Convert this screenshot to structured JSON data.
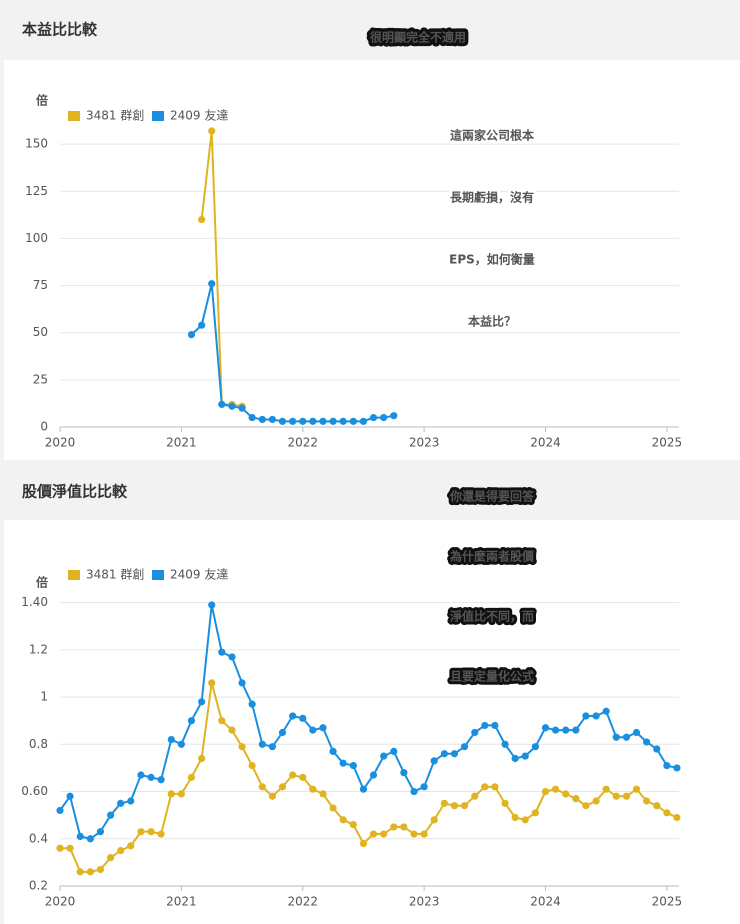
{
  "chart_data": [
    {
      "type": "line",
      "title": "本益比比較",
      "y_label": "倍",
      "headline": "很明顯完全不適用",
      "annotation_lines": [
        "這兩家公司根本",
        "長期虧損，沒有",
        "EPS，如何衡量",
        "本益比？"
      ],
      "x": [
        2021.083,
        2021.167,
        2021.25,
        2021.333,
        2021.417,
        2021.5,
        2021.583,
        2021.667,
        2021.75,
        2021.833,
        2021.917,
        2022,
        2022.083,
        2022.167,
        2022.25,
        2022.333,
        2022.417,
        2022.5,
        2022.583,
        2022.667,
        2022.75
      ],
      "series": [
        {
          "name": "3481 群創",
          "color": "#e0b420",
          "values": [
            null,
            110,
            157,
            12,
            12,
            11,
            null,
            null,
            null,
            null,
            null,
            null,
            null,
            null,
            null,
            null,
            null,
            null,
            null,
            null,
            null
          ]
        },
        {
          "name": "2409 友達",
          "color": "#1a8fe0",
          "values": [
            49,
            54,
            76,
            12,
            11,
            10,
            5,
            4,
            4,
            3,
            3,
            3,
            3,
            3,
            3,
            3,
            3,
            3,
            5,
            5,
            6
          ]
        }
      ],
      "xlim": [
        2020,
        2025.1
      ],
      "xticks": [
        2020,
        2021,
        2022,
        2023,
        2024,
        2025
      ],
      "ylim": [
        0,
        175
      ],
      "yticks": [
        0,
        25,
        50,
        75,
        100,
        125,
        150
      ],
      "grid": true,
      "legend": "top-left"
    },
    {
      "type": "line",
      "title": "股價淨值比比較",
      "y_label": "倍",
      "annotation_lines": [
        "你還是得要回答",
        "為什麼兩者股價",
        "淨值比不同，而",
        "且要定量化公式"
      ],
      "x": [
        2020,
        2020.083,
        2020.167,
        2020.25,
        2020.333,
        2020.417,
        2020.5,
        2020.583,
        2020.667,
        2020.75,
        2020.833,
        2020.917,
        2021,
        2021.083,
        2021.167,
        2021.25,
        2021.333,
        2021.417,
        2021.5,
        2021.583,
        2021.667,
        2021.75,
        2021.833,
        2021.917,
        2022,
        2022.083,
        2022.167,
        2022.25,
        2022.333,
        2022.417,
        2022.5,
        2022.583,
        2022.667,
        2022.75,
        2022.833,
        2022.917,
        2023,
        2023.083,
        2023.167,
        2023.25,
        2023.333,
        2023.417,
        2023.5,
        2023.583,
        2023.667,
        2023.75,
        2023.833,
        2023.917,
        2024,
        2024.083,
        2024.167,
        2024.25,
        2024.333,
        2024.417,
        2024.5,
        2024.583,
        2024.667,
        2024.75,
        2024.833,
        2024.917,
        2025,
        2025.083
      ],
      "series": [
        {
          "name": "3481 群創",
          "color": "#e0b420",
          "values": [
            0.36,
            0.36,
            0.26,
            0.26,
            0.27,
            0.32,
            0.35,
            0.37,
            0.43,
            0.43,
            0.42,
            0.59,
            0.59,
            0.66,
            0.74,
            1.06,
            0.9,
            0.86,
            0.79,
            0.71,
            0.62,
            0.58,
            0.62,
            0.67,
            0.66,
            0.61,
            0.59,
            0.53,
            0.48,
            0.46,
            0.38,
            0.42,
            0.42,
            0.45,
            0.45,
            0.42,
            0.42,
            0.48,
            0.55,
            0.54,
            0.54,
            0.58,
            0.62,
            0.62,
            0.55,
            0.49,
            0.48,
            0.51,
            0.6,
            0.61,
            0.59,
            0.57,
            0.54,
            0.56,
            0.61,
            0.58,
            0.58,
            0.61,
            0.56,
            0.54,
            0.51,
            0.49
          ]
        },
        {
          "name": "2409 友達",
          "color": "#1a8fe0",
          "values": [
            0.52,
            0.58,
            0.41,
            0.4,
            0.43,
            0.5,
            0.55,
            0.56,
            0.67,
            0.66,
            0.65,
            0.82,
            0.8,
            0.9,
            0.98,
            1.39,
            1.19,
            1.17,
            1.06,
            0.97,
            0.8,
            0.79,
            0.85,
            0.92,
            0.91,
            0.86,
            0.87,
            0.77,
            0.72,
            0.71,
            0.61,
            0.67,
            0.75,
            0.77,
            0.68,
            0.6,
            0.62,
            0.73,
            0.76,
            0.76,
            0.79,
            0.85,
            0.88,
            0.88,
            0.8,
            0.74,
            0.75,
            0.79,
            0.87,
            0.86,
            0.86,
            0.86,
            0.92,
            0.92,
            0.94,
            0.83,
            0.83,
            0.85,
            0.81,
            0.78,
            0.71,
            0.7
          ]
        }
      ],
      "xlim": [
        2020,
        2025.1
      ],
      "xticks": [
        2020,
        2021,
        2022,
        2023,
        2024,
        2025
      ],
      "ylim": [
        0.2,
        1.5
      ],
      "yticks": [
        0.2,
        0.4,
        {
          "value": 0.6,
          "label": "0.60"
        },
        0.8,
        1,
        1.2,
        {
          "value": 1.4,
          "label": "1.40"
        }
      ],
      "grid": true,
      "legend": "top-left"
    }
  ]
}
